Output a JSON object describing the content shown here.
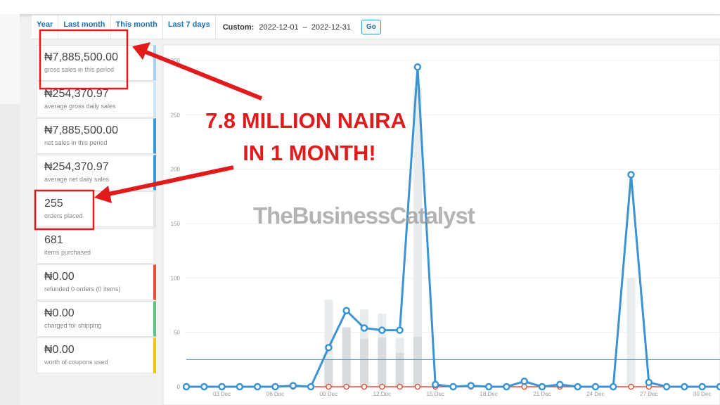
{
  "tabs": [
    "Year",
    "Last month",
    "This month",
    "Last 7 days"
  ],
  "custom": {
    "label": "Custom:",
    "start": "2022-12-01",
    "separator": "–",
    "end": "2022-12-31",
    "button": "Go"
  },
  "stats": [
    {
      "value": "₦7,885,500.00",
      "label": "gross sales in this period",
      "color": "#a8d1ee"
    },
    {
      "value": "₦254,370.97",
      "label": "average gross daily sales",
      "color": "#cfe4f3"
    },
    {
      "value": "₦7,885,500.00",
      "label": "net sales in this period",
      "color": "#3498db"
    },
    {
      "value": "₦254,370.97",
      "label": "average net daily sales",
      "color": "#3498db"
    },
    {
      "value": "255",
      "label": "orders placed",
      "color": "#e2e6e8"
    },
    {
      "value": "681",
      "label": "items purchased",
      "color": "#eef0f1"
    },
    {
      "value": "₦0.00",
      "label": "refunded 0 orders (0 items)",
      "color": "#e74c3c"
    },
    {
      "value": "₦0.00",
      "label": "charged for shipping",
      "color": "#5cc488"
    },
    {
      "value": "₦0.00",
      "label": "worth of coupons used",
      "color": "#f1c40f"
    }
  ],
  "annotation": [
    "7.8 MILLION NAIRA",
    "IN 1 MONTH!"
  ],
  "watermark": "TheBusinessCatalyst",
  "chart_data": {
    "type": "line",
    "categories": [
      null,
      null,
      "03 Dec",
      null,
      null,
      "06 Dec",
      null,
      null,
      "09 Dec",
      null,
      null,
      "12 Dec",
      null,
      null,
      "15 Dec",
      null,
      null,
      "18 Dec",
      null,
      null,
      "21 Dec",
      null,
      null,
      "24 Dec",
      null,
      null,
      "27 Dec",
      null,
      null,
      "30 Dec",
      null
    ],
    "series": [
      {
        "style": "bar",
        "color": "#e9ecee",
        "values": [
          0,
          0,
          0,
          0,
          0,
          0,
          0,
          0,
          80,
          55,
          71,
          67,
          45,
          275,
          0,
          0,
          0,
          0,
          0,
          0,
          0,
          0,
          0,
          0,
          0,
          100,
          0,
          0,
          0,
          0,
          0
        ]
      },
      {
        "style": "bar",
        "color": "#d8dcde",
        "values": [
          0,
          0,
          0,
          0,
          0,
          0,
          0,
          0,
          25,
          54,
          44,
          45,
          31,
          46,
          0,
          0,
          0,
          0,
          0,
          0,
          0,
          0,
          0,
          0,
          0,
          0,
          0,
          0,
          0,
          0,
          0
        ]
      },
      {
        "style": "line",
        "color": "#e0553f",
        "values": [
          0,
          0,
          0,
          0,
          0,
          0,
          0,
          0,
          0,
          0,
          0,
          0,
          0,
          0,
          0,
          0,
          0,
          0,
          0,
          0,
          0,
          0,
          0,
          0,
          0,
          0,
          0,
          0,
          0,
          0,
          0
        ]
      },
      {
        "style": "line",
        "color": "#3a94d3",
        "values": [
          0,
          0,
          0,
          0,
          0,
          0,
          1,
          0,
          36,
          70,
          54,
          52,
          52,
          294,
          2,
          0,
          1,
          0,
          0,
          5,
          0,
          2,
          0,
          0,
          0,
          195,
          4,
          0,
          0,
          0,
          0
        ]
      }
    ],
    "average": 25,
    "average_color": "#3a94d3",
    "ylim": [
      0,
      300
    ],
    "yticks": [
      0,
      50,
      100,
      150,
      200,
      250,
      300
    ]
  }
}
